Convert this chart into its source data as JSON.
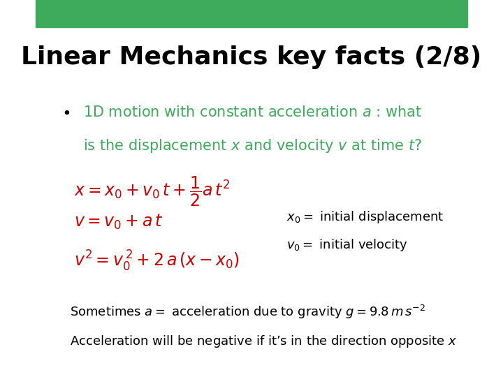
{
  "title": "Linear Mechanics key facts (2/8)",
  "title_fontsize": 26,
  "title_color": "#000000",
  "title_bold": true,
  "bg_color": "#ffffff",
  "header_bar_color": "#3DAA5C",
  "header_bar_height": 0.072,
  "bullet_color": "#000000",
  "bullet_text_color": "#3DAA5C",
  "red_color": "#CC0000",
  "black_color": "#000000",
  "bullet_line1": "1D motion with constant acceleration $a$ : what",
  "bullet_line2": "is the displacement $x$ and velocity $v$ at time $t$?",
  "eq1": "$x = x_0 + v_0\\, t + \\dfrac{1}{2}a\\, t^2$",
  "eq2": "$v = v_0 + a\\, t$",
  "eq3": "$v^2 = v_0^{\\,2} + 2\\, a\\, (x - x_0)$",
  "note1": "$x_0 = $ initial displacement",
  "note2": "$v_0 = $ initial velocity",
  "bottom1": "Sometimes $a =$ acceleration due to gravity $g = 9.8\\, m\\, s^{-2}$",
  "bottom2": "Acceleration will be negative if it’s in the direction opposite $x$"
}
